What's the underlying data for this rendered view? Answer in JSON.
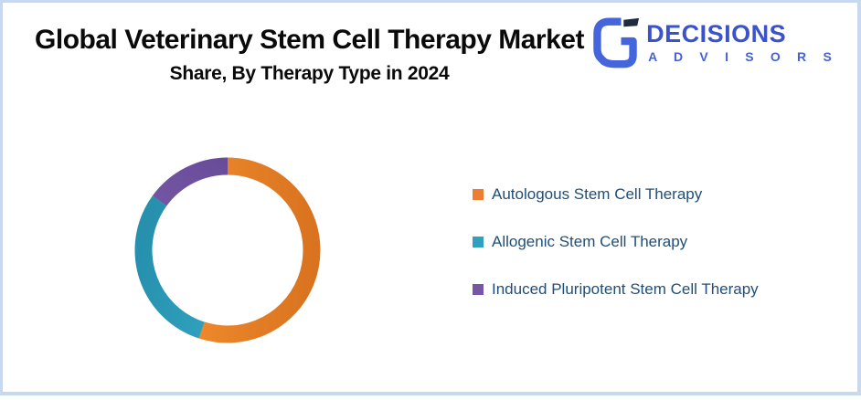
{
  "page": {
    "border_color": "#c8d8ee",
    "background": "#ffffff"
  },
  "header": {
    "title": "Global Veterinary Stem Cell Therapy Market",
    "subtitle": "Share, By Therapy Type in 2024"
  },
  "logo": {
    "name": "DECISIONS",
    "tagline": "A D V I S O R S",
    "text_color": "#3a53cb",
    "tagline_color": "#4662d4",
    "mark_blue": "#4565dd",
    "mark_dark": "#1f2c3f"
  },
  "chart_data": {
    "type": "pie",
    "subtype": "donut",
    "title": "Global Veterinary Stem Cell Therapy Market Share, By Therapy Type in 2024",
    "categories": [
      "Autologous Stem Cell Therapy",
      "Allogenic Stem Cell Therapy",
      "Induced Pluripotent Stem Cell Therapy"
    ],
    "values": [
      55,
      30,
      15
    ],
    "unit": "percent-share",
    "colors": [
      "#f79231",
      "#38afcb",
      "#7e61ad"
    ],
    "colors_dark": [
      "#d9731f",
      "#2690ad",
      "#664a98"
    ],
    "start_angle_deg": 0,
    "direction": "clockwise",
    "donut_hole_ratio": 0.82,
    "data_labels": false,
    "legend_position": "right",
    "legend_text_color": "#1f4e79"
  },
  "legend": {
    "items": [
      {
        "label": "Autologous Stem Cell Therapy",
        "color": "#ed7d31"
      },
      {
        "label": "Allogenic Stem Cell Therapy",
        "color": "#2fa0bd"
      },
      {
        "label": "Induced Pluripotent Stem Cell Therapy",
        "color": "#7656a5"
      }
    ]
  }
}
